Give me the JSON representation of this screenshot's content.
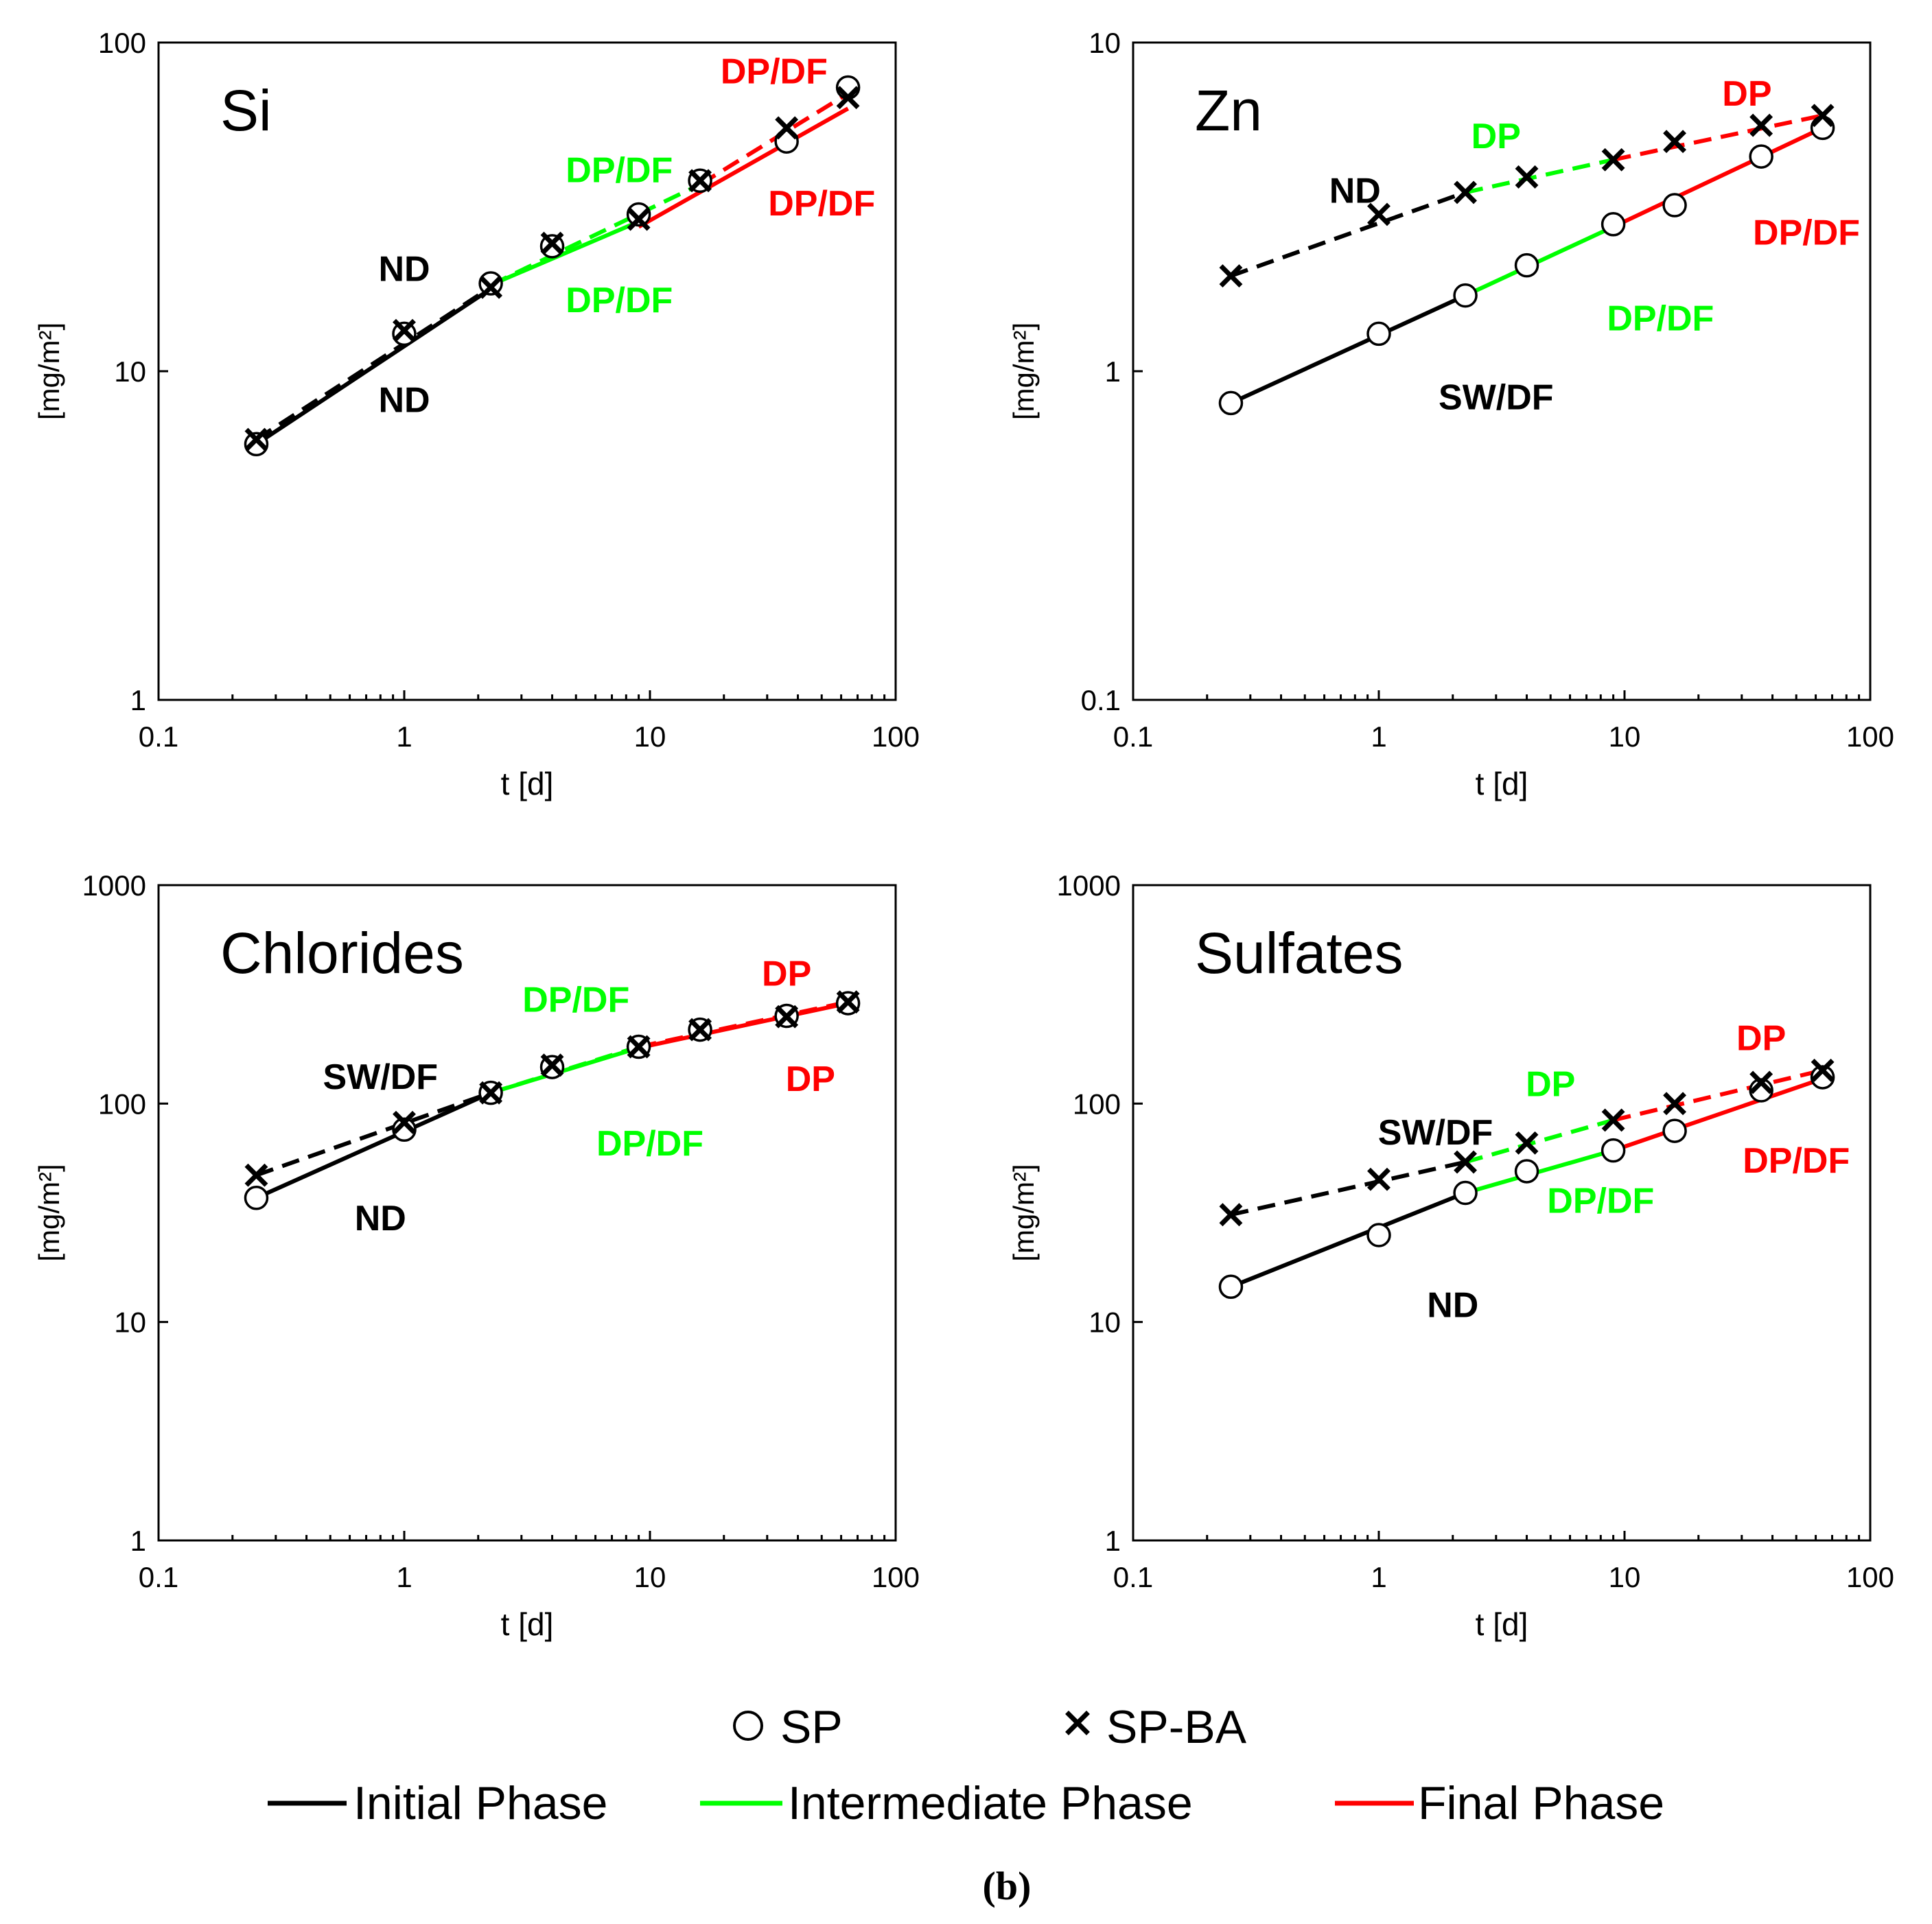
{
  "figure_label": "(b)",
  "colors": {
    "initial": "#000000",
    "intermediate": "#00ff00",
    "final": "#ff0000",
    "axis": "#000000"
  },
  "legend": {
    "markers": [
      {
        "symbol": "circle",
        "label": "SP"
      },
      {
        "symbol": "cross",
        "label": "SP-BA"
      }
    ],
    "phases": [
      {
        "key": "initial",
        "label": "Initial Phase"
      },
      {
        "key": "intermediate",
        "label": "Intermediate Phase"
      },
      {
        "key": "final",
        "label": "Final Phase"
      }
    ]
  },
  "chart_data": [
    {
      "type": "scatter",
      "title": "Si",
      "xlabel": "t [d]",
      "ylabel": "[mg/m2]",
      "xscale": "log",
      "yscale": "log",
      "xlim": [
        0.1,
        100
      ],
      "ylim": [
        1,
        100
      ],
      "xticks": [
        "0.1",
        "1",
        "10",
        "100"
      ],
      "yticks": [
        "1",
        "10",
        "100"
      ],
      "x": [
        0.25,
        1,
        2.25,
        4,
        9,
        16,
        36,
        64
      ],
      "series": [
        {
          "name": "SP",
          "marker": "circle",
          "values": [
            6.0,
            13.0,
            18.5,
            24.0,
            30.0,
            38.0,
            50.0,
            73.0
          ]
        },
        {
          "name": "SP-BA",
          "marker": "cross",
          "values": [
            6.2,
            13.3,
            18.0,
            24.5,
            29.0,
            38.0,
            55.0,
            68.0
          ]
        }
      ],
      "fits": [
        {
          "series": "SP",
          "phase": "initial",
          "style": "solid",
          "x": [
            0.25,
            2.25
          ],
          "y": [
            6.0,
            17.8
          ]
        },
        {
          "series": "SP",
          "phase": "intermediate",
          "style": "solid",
          "x": [
            2.25,
            9
          ],
          "y": [
            18.3,
            28.5
          ]
        },
        {
          "series": "SP",
          "phase": "final",
          "style": "solid",
          "x": [
            9,
            64
          ],
          "y": [
            27.5,
            63.0
          ]
        },
        {
          "series": "SP-BA",
          "phase": "initial",
          "style": "dashed",
          "x": [
            0.25,
            2.25
          ],
          "y": [
            6.2,
            18.0
          ]
        },
        {
          "series": "SP-BA",
          "phase": "intermediate",
          "style": "dashed",
          "x": [
            2.25,
            16
          ],
          "y": [
            18.3,
            37.0
          ]
        },
        {
          "series": "SP-BA",
          "phase": "final",
          "style": "dashed",
          "x": [
            16,
            64
          ],
          "y": [
            37.0,
            70.0
          ]
        }
      ],
      "annotations": [
        {
          "text": "ND",
          "phase": "initial",
          "x": 1.0,
          "y": 20.5
        },
        {
          "text": "ND",
          "phase": "initial",
          "x": 1.0,
          "y": 8.2
        },
        {
          "text": "DP/DF",
          "phase": "intermediate",
          "x": 7.5,
          "y": 41.0
        },
        {
          "text": "DP/DF",
          "phase": "intermediate",
          "x": 7.5,
          "y": 16.5
        },
        {
          "text": "DP/DF",
          "phase": "final",
          "x": 32.0,
          "y": 82.0
        },
        {
          "text": "DP/DF",
          "phase": "final",
          "x": 50.0,
          "y": 32.5
        }
      ]
    },
    {
      "type": "scatter",
      "title": "Zn",
      "xlabel": "t [d]",
      "ylabel": "[mg/m2]",
      "xscale": "log",
      "yscale": "log",
      "xlim": [
        0.1,
        100
      ],
      "ylim": [
        0.1,
        10
      ],
      "xticks": [
        "0.1",
        "1",
        "10",
        "100"
      ],
      "yticks": [
        "0.1",
        "1",
        "10"
      ],
      "x": [
        0.25,
        1,
        2.25,
        4,
        9,
        16,
        36,
        64
      ],
      "series": [
        {
          "name": "SP",
          "marker": "circle",
          "values": [
            0.8,
            1.3,
            1.7,
            2.1,
            2.8,
            3.2,
            4.5,
            5.5
          ]
        },
        {
          "name": "SP-BA",
          "marker": "cross",
          "values": [
            1.95,
            3.0,
            3.5,
            3.9,
            4.4,
            5.0,
            5.6,
            6.0
          ]
        }
      ],
      "fits": [
        {
          "series": "SP",
          "phase": "initial",
          "style": "solid",
          "x": [
            0.25,
            2.25
          ],
          "y": [
            0.8,
            1.7
          ]
        },
        {
          "series": "SP",
          "phase": "intermediate",
          "style": "solid",
          "x": [
            2.25,
            9
          ],
          "y": [
            1.7,
            2.75
          ]
        },
        {
          "series": "SP",
          "phase": "final",
          "style": "solid",
          "x": [
            9,
            64
          ],
          "y": [
            2.75,
            5.5
          ]
        },
        {
          "series": "SP-BA",
          "phase": "initial",
          "style": "dashed",
          "x": [
            0.25,
            2.25
          ],
          "y": [
            1.95,
            3.5
          ]
        },
        {
          "series": "SP-BA",
          "phase": "intermediate",
          "style": "dashed",
          "x": [
            2.25,
            9
          ],
          "y": [
            3.5,
            4.4
          ]
        },
        {
          "series": "SP-BA",
          "phase": "final",
          "style": "dashed",
          "x": [
            9,
            64
          ],
          "y": [
            4.4,
            6.0
          ]
        }
      ],
      "annotations": [
        {
          "text": "ND",
          "phase": "initial",
          "x": 0.8,
          "y": 3.55
        },
        {
          "text": "SW/DF",
          "phase": "initial",
          "x": 3.0,
          "y": 0.835
        },
        {
          "text": "DP",
          "phase": "intermediate",
          "x": 3.0,
          "y": 5.2
        },
        {
          "text": "DP/DF",
          "phase": "intermediate",
          "x": 14.0,
          "y": 1.45
        },
        {
          "text": "DP",
          "phase": "final",
          "x": 31.5,
          "y": 7.0
        },
        {
          "text": "DP/DF",
          "phase": "final",
          "x": 55.0,
          "y": 2.65
        }
      ]
    },
    {
      "type": "scatter",
      "title": "Chlorides",
      "xlabel": "t [d]",
      "ylabel": "[mg/m2]",
      "xscale": "log",
      "yscale": "log",
      "xlim": [
        0.1,
        100
      ],
      "ylim": [
        1,
        1000
      ],
      "xticks": [
        "0.1",
        "1",
        "10",
        "100"
      ],
      "yticks": [
        "1",
        "10",
        "100",
        "1000"
      ],
      "x": [
        0.25,
        1,
        2.25,
        4,
        9,
        16,
        36,
        64
      ],
      "series": [
        {
          "name": "SP",
          "marker": "circle",
          "values": [
            37.0,
            76.0,
            112.0,
            147.0,
            182.0,
            218.0,
            252.0,
            288.0
          ]
        },
        {
          "name": "SP-BA",
          "marker": "cross",
          "values": [
            47.0,
            82.0,
            112.0,
            150.0,
            182.0,
            218.0,
            250.0,
            292.0
          ]
        }
      ],
      "fits": [
        {
          "series": "SP",
          "phase": "initial",
          "style": "solid",
          "x": [
            0.25,
            2.25
          ],
          "y": [
            37.0,
            112.0
          ]
        },
        {
          "series": "SP",
          "phase": "intermediate",
          "style": "solid",
          "x": [
            2.25,
            9
          ],
          "y": [
            112.0,
            180.0
          ]
        },
        {
          "series": "SP",
          "phase": "final",
          "style": "solid",
          "x": [
            9,
            64
          ],
          "y": [
            180.0,
            288.0
          ]
        },
        {
          "series": "SP-BA",
          "phase": "initial",
          "style": "dashed",
          "x": [
            0.25,
            2.25
          ],
          "y": [
            47.0,
            112.0
          ]
        },
        {
          "series": "SP-BA",
          "phase": "intermediate",
          "style": "dashed",
          "x": [
            2.25,
            9
          ],
          "y": [
            112.0,
            182.0
          ]
        },
        {
          "series": "SP-BA",
          "phase": "final",
          "style": "dashed",
          "x": [
            9,
            64
          ],
          "y": [
            182.0,
            292.0
          ]
        }
      ],
      "annotations": [
        {
          "text": "SW/DF",
          "phase": "initial",
          "x": 0.8,
          "y": 133.0
        },
        {
          "text": "ND",
          "phase": "initial",
          "x": 0.8,
          "y": 30.0
        },
        {
          "text": "DP/DF",
          "phase": "intermediate",
          "x": 5.0,
          "y": 300.0
        },
        {
          "text": "DP/DF",
          "phase": "intermediate",
          "x": 10.0,
          "y": 66.0
        },
        {
          "text": "DP",
          "phase": "final",
          "x": 36.0,
          "y": 395.0
        },
        {
          "text": "DP",
          "phase": "final",
          "x": 45.0,
          "y": 130.0
        }
      ]
    },
    {
      "type": "scatter",
      "title": "Sulfates",
      "xlabel": "t [d]",
      "ylabel": "[mg/m2]",
      "xscale": "log",
      "yscale": "log",
      "xlim": [
        0.1,
        100
      ],
      "ylim": [
        1,
        1000
      ],
      "xticks": [
        "0.1",
        "1",
        "10",
        "100"
      ],
      "yticks": [
        "1",
        "10",
        "100",
        "1000"
      ],
      "x": [
        0.25,
        1,
        2.25,
        4,
        9,
        16,
        36,
        64
      ],
      "series": [
        {
          "name": "SP",
          "marker": "circle",
          "values": [
            14.5,
            25.0,
            39.0,
            49.0,
            61.0,
            75.0,
            115.0,
            132.0
          ]
        },
        {
          "name": "SP-BA",
          "marker": "cross",
          "values": [
            31.0,
            45.0,
            54.0,
            66.0,
            84.0,
            100.0,
            125.0,
            142.0
          ]
        }
      ],
      "fits": [
        {
          "series": "SP",
          "phase": "initial",
          "style": "solid",
          "x": [
            0.25,
            2.25
          ],
          "y": [
            14.5,
            39.0
          ]
        },
        {
          "series": "SP",
          "phase": "intermediate",
          "style": "solid",
          "x": [
            2.25,
            9
          ],
          "y": [
            39.0,
            61.0
          ]
        },
        {
          "series": "SP",
          "phase": "final",
          "style": "solid",
          "x": [
            9,
            64
          ],
          "y": [
            61.0,
            130.0
          ]
        },
        {
          "series": "SP-BA",
          "phase": "initial",
          "style": "dashed",
          "x": [
            0.25,
            2.25
          ],
          "y": [
            31.0,
            54.0
          ]
        },
        {
          "series": "SP-BA",
          "phase": "intermediate",
          "style": "dashed",
          "x": [
            2.25,
            9
          ],
          "y": [
            54.0,
            84.0
          ]
        },
        {
          "series": "SP-BA",
          "phase": "final",
          "style": "dashed",
          "x": [
            9,
            64
          ],
          "y": [
            84.0,
            142.0
          ]
        }
      ],
      "annotations": [
        {
          "text": "SW/DF",
          "phase": "initial",
          "x": 1.7,
          "y": 74.0
        },
        {
          "text": "ND",
          "phase": "initial",
          "x": 2.0,
          "y": 12.0
        },
        {
          "text": "DP",
          "phase": "intermediate",
          "x": 5.0,
          "y": 123.0
        },
        {
          "text": "DP/DF",
          "phase": "intermediate",
          "x": 8.0,
          "y": 36.0
        },
        {
          "text": "DP",
          "phase": "final",
          "x": 36.0,
          "y": 200.0
        },
        {
          "text": "DP/DF",
          "phase": "final",
          "x": 50.0,
          "y": 55.0
        }
      ]
    }
  ]
}
